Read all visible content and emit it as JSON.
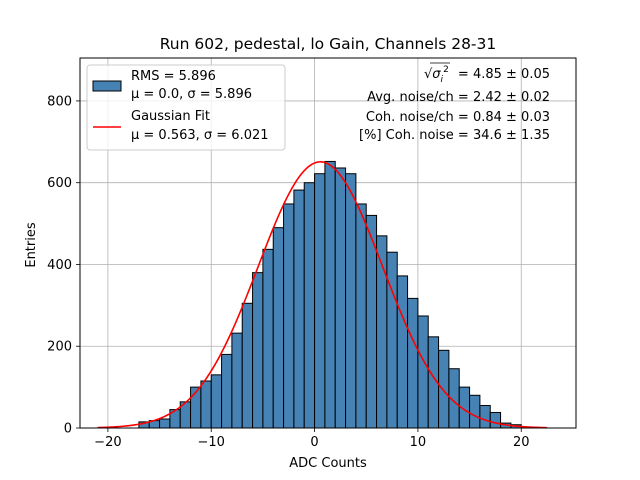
{
  "chart_data": {
    "type": "bar",
    "title": "Run 602, pedestal, lo Gain, Channels 28-31",
    "xlabel": "ADC Counts",
    "ylabel": "Entries",
    "xlim": [
      -22.7,
      25.3
    ],
    "ylim": [
      0,
      905
    ],
    "xticks": [
      -20,
      -10,
      0,
      10,
      20
    ],
    "yticks": [
      0,
      200,
      400,
      600,
      800
    ],
    "xtick_labels": [
      "−20",
      "−10",
      "0",
      "10",
      "20"
    ],
    "ytick_labels": [
      "0",
      "200",
      "400",
      "600",
      "800"
    ],
    "grid": true,
    "bin_width": 1,
    "bin_left_edges": [
      -17,
      -16,
      -15,
      -14,
      -13,
      -12,
      -11,
      -10,
      -9,
      -8,
      -7,
      -6,
      -5,
      -4,
      -3,
      -2,
      -1,
      0,
      1,
      2,
      3,
      4,
      5,
      6,
      7,
      8,
      9,
      10,
      11,
      12,
      13,
      14,
      15,
      16,
      17,
      18,
      19
    ],
    "counts": [
      15,
      18,
      22,
      45,
      64,
      100,
      115,
      130,
      180,
      232,
      305,
      380,
      437,
      490,
      548,
      582,
      600,
      622,
      652,
      636,
      622,
      548,
      520,
      470,
      430,
      372,
      317,
      274,
      223,
      190,
      145,
      100,
      80,
      55,
      38,
      12,
      8
    ],
    "bar_color": "#4682b4",
    "bar_edge_color": "#000000",
    "series": [
      {
        "name": "RMS = 5.896",
        "name_line2": "μ = 0.0, σ = 5.896",
        "kind": "histogram"
      },
      {
        "name": "Gaussian Fit",
        "name_line2": "μ = 0.563, σ = 6.021",
        "kind": "line",
        "color": "#ff0000",
        "amplitude": 651,
        "mu": 0.563,
        "sigma": 6.021,
        "x_range": [
          -21,
          22.5
        ]
      }
    ],
    "legend_position": "top-left",
    "annotations": [
      {
        "label": "= 4.85 ± 0.05",
        "prefix_symbol": "√σᵢ²"
      },
      {
        "label": "Avg. noise/ch = 2.42 ± 0.02"
      },
      {
        "label": "Coh. noise/ch = 0.84 ± 0.03"
      },
      {
        "label": "[%] Coh. noise = 34.6 ± 1.35"
      }
    ]
  }
}
